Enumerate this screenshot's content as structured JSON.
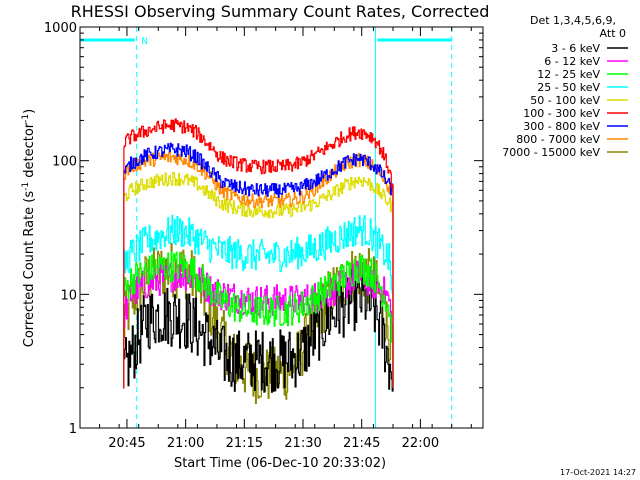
{
  "chart_data": {
    "type": "line",
    "title": "RHESSI Observing Summary Count Rates, Corrected",
    "xlabel": "Start Time (06-Dec-10 20:33:02)",
    "ylabel_parts": [
      "Corrected Count Rate (s",
      "-1",
      " detector",
      "-1",
      ")"
    ],
    "y_scale": "log",
    "ylim": [
      1,
      1000
    ],
    "x_units": "minutes since 20:33:02",
    "xlim": [
      0,
      103
    ],
    "x_ticks": [
      {
        "label": "20:45",
        "x": 12.0
      },
      {
        "label": "21:00",
        "x": 27.0
      },
      {
        "label": "21:15",
        "x": 42.0
      },
      {
        "label": "21:30",
        "x": 57.0
      },
      {
        "label": "21:45",
        "x": 72.0
      },
      {
        "label": "22:00",
        "x": 87.0
      }
    ],
    "y_ticks": [
      {
        "label": "1",
        "y": 1
      },
      {
        "label": "10",
        "y": 10
      },
      {
        "label": "100",
        "y": 100
      },
      {
        "label": "1000",
        "y": 1000
      }
    ],
    "legend_header": [
      "Det 1,3,4,5,6,9,",
      "Att 0"
    ],
    "legend_placement": "right, outside plot",
    "data_start": 11.0,
    "data_end": 80.0,
    "series": [
      {
        "name": "3 - 6 keV",
        "color": "#000000",
        "x": [
          11,
          13,
          17,
          20,
          24,
          27,
          30,
          33,
          36,
          40,
          44,
          48,
          52,
          56,
          60,
          64,
          68,
          71,
          73,
          75,
          77,
          79,
          80
        ],
        "y": [
          2.5,
          3.5,
          6.5,
          7,
          7,
          6.5,
          5.5,
          4.5,
          3.5,
          3.2,
          3.2,
          3.2,
          3.2,
          3.5,
          5,
          7,
          8.5,
          9.5,
          9,
          8,
          5.5,
          3,
          2.5
        ]
      },
      {
        "name": "6 - 12 keV",
        "color": "#ff00ff",
        "x": [
          11,
          13,
          17,
          21,
          24,
          27,
          30,
          33,
          36,
          40,
          44,
          48,
          52,
          56,
          60,
          64,
          68,
          71,
          73,
          75,
          77,
          79,
          80
        ],
        "y": [
          7,
          10,
          12,
          13,
          14,
          14,
          13,
          11,
          10,
          9.5,
          9,
          9,
          9,
          9,
          9.5,
          10.5,
          12,
          14,
          13,
          12,
          11,
          9,
          4
        ]
      },
      {
        "name": "12 - 25 keV",
        "color": "#00ff00",
        "x": [
          11,
          13,
          17,
          21,
          24,
          27,
          30,
          33,
          36,
          40,
          44,
          48,
          52,
          56,
          60,
          64,
          68,
          71,
          73,
          75,
          77,
          79,
          80
        ],
        "y": [
          10,
          13,
          15,
          16,
          16.5,
          16,
          14,
          11,
          9,
          8,
          7.5,
          7.5,
          7.5,
          8,
          9.5,
          11.5,
          14,
          16,
          15.5,
          14,
          11,
          8,
          4
        ]
      },
      {
        "name": "25 - 50 keV",
        "color": "#00ffff",
        "x": [
          11,
          13,
          17,
          21,
          24,
          27,
          30,
          33,
          36,
          40,
          44,
          48,
          52,
          56,
          60,
          64,
          68,
          71,
          73,
          75,
          77,
          79,
          80
        ],
        "y": [
          16,
          20,
          25,
          28,
          30,
          29,
          26,
          23,
          21,
          20,
          19.5,
          19.5,
          19.5,
          20.5,
          22,
          25,
          28,
          31,
          30,
          27,
          22,
          18,
          9
        ]
      },
      {
        "name": "50 - 100 keV",
        "color": "#dddd00",
        "x": [
          11,
          13,
          17,
          21,
          24,
          27,
          30,
          33,
          36,
          40,
          44,
          48,
          52,
          56,
          60,
          64,
          68,
          71,
          73,
          75,
          77,
          79,
          80
        ],
        "y": [
          52,
          60,
          68,
          72,
          74,
          72,
          66,
          56,
          48,
          44,
          42,
          42,
          42,
          44,
          48,
          56,
          66,
          72,
          70,
          64,
          56,
          48,
          44
        ]
      },
      {
        "name": "100 - 300 keV",
        "color": "#ff0000",
        "x": [
          11,
          13,
          17,
          21,
          24,
          27,
          30,
          33,
          36,
          40,
          44,
          48,
          52,
          56,
          60,
          64,
          68,
          71,
          73,
          75,
          77,
          79,
          80
        ],
        "y": [
          135,
          150,
          168,
          180,
          185,
          178,
          160,
          130,
          105,
          95,
          90,
          90,
          90,
          95,
          110,
          130,
          155,
          165,
          160,
          148,
          120,
          85,
          60
        ]
      },
      {
        "name": "300 - 800 keV",
        "color": "#0000ff",
        "x": [
          11,
          13,
          17,
          21,
          24,
          27,
          30,
          33,
          36,
          40,
          44,
          48,
          52,
          56,
          60,
          64,
          68,
          71,
          73,
          75,
          77,
          79,
          80
        ],
        "y": [
          80,
          95,
          110,
          118,
          122,
          118,
          105,
          85,
          70,
          63,
          60,
          60,
          60,
          62,
          70,
          82,
          98,
          104,
          100,
          92,
          80,
          65,
          58
        ]
      },
      {
        "name": "800 - 7000 keV",
        "color": "#ff8800",
        "x": [
          11,
          13,
          17,
          21,
          24,
          27,
          30,
          33,
          36,
          40,
          44,
          48,
          52,
          56,
          60,
          64,
          68,
          71,
          73,
          75,
          77,
          79,
          80
        ],
        "y": [
          78,
          90,
          100,
          105,
          106,
          102,
          92,
          76,
          60,
          53,
          50,
          50,
          50,
          52,
          62,
          78,
          95,
          102,
          98,
          90,
          78,
          63,
          56
        ]
      },
      {
        "name": "7000 - 15000 keV",
        "color": "#888800",
        "x": [
          11,
          13,
          17,
          21,
          24,
          27,
          30,
          33,
          36,
          40,
          44,
          48,
          52,
          56,
          60,
          64,
          68,
          71,
          73,
          75,
          77,
          79,
          80
        ],
        "y": [
          5.5,
          9,
          13,
          15,
          15.5,
          15,
          12,
          8,
          5,
          3,
          2.5,
          2.5,
          2.5,
          3.5,
          6.5,
          10,
          13,
          15,
          14,
          12.5,
          9,
          5,
          4
        ]
      }
    ],
    "vertical_lines": [
      {
        "x": 0.0,
        "style": "solid",
        "color": "#00ffff"
      },
      {
        "x": 14.5,
        "style": "dashed",
        "color": "#00ffff"
      },
      {
        "x": 75.5,
        "style": "solid",
        "color": "#00ffff"
      },
      {
        "x": 95.0,
        "style": "dashed",
        "color": "#00ffff"
      }
    ],
    "top_bars": [
      {
        "x0": 0.0,
        "x1": 14.0,
        "y": 800,
        "color": "#00ffff"
      },
      {
        "x0": 76.0,
        "x1": 95.0,
        "y": 800,
        "color": "#00ffff"
      }
    ],
    "annotations": [
      {
        "text": "N",
        "x": 16.5,
        "y": 800,
        "color": "#00ffff"
      }
    ],
    "timestamp": "17-Oct-2021 14:27"
  }
}
